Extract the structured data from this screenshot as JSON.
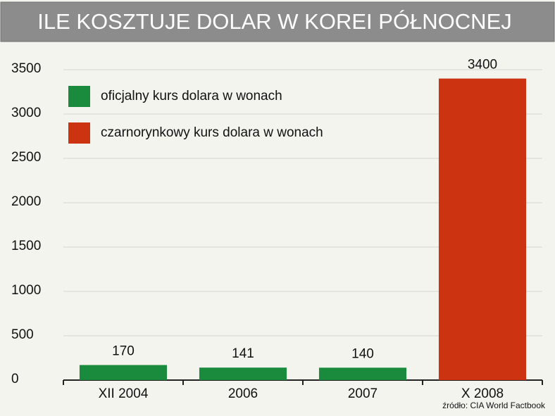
{
  "chart_data": {
    "type": "bar",
    "title": "ILE KOSZTUJE DOLAR W KOREI PÓŁNOCNEJ",
    "source": "źródło: CIA World Factbook",
    "categories": [
      "XII 2004",
      "2006",
      "2007",
      "X 2008"
    ],
    "series": [
      {
        "name": "oficjalny kurs dolara w wonach",
        "color": "#1a8a3c",
        "values": [
          170,
          141,
          140,
          null
        ]
      },
      {
        "name": "czarnorynkowy kurs dolara w wonach",
        "color": "#cc3311",
        "values": [
          null,
          null,
          null,
          3400
        ]
      }
    ],
    "ylim": [
      0,
      3500
    ],
    "yticks": [
      0,
      500,
      1000,
      1500,
      2000,
      2500,
      3000,
      3500
    ],
    "grid": true
  }
}
